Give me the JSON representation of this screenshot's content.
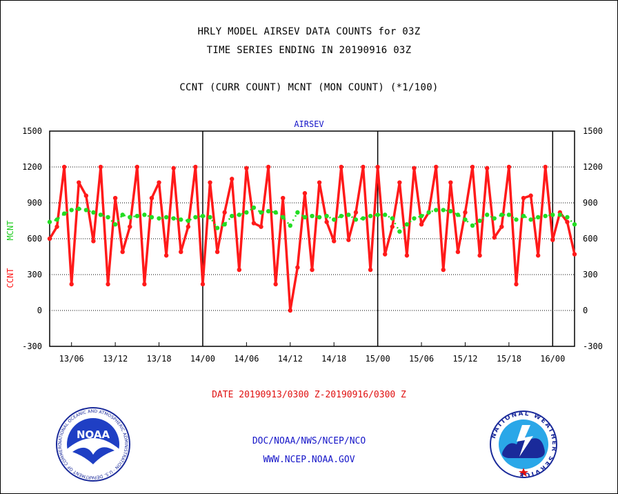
{
  "header": {
    "title_line1": "HRLY MODEL AIRSEV DATA COUNTS for 03Z",
    "title_line2": "TIME SERIES ENDING IN 20190916 03Z",
    "subtitle": "CCNT (CURR COUNT) MCNT (MON COUNT) (*1/100)"
  },
  "footer": {
    "date_range": "DATE 20190913/0300 Z-20190916/0300 Z",
    "org_path": "DOC/NOAA/NWS/NCEP/NCO",
    "website": "WWW.NCEP.NOAA.GOV"
  },
  "logos": {
    "left": {
      "text": "NOAA",
      "ring_text": "NATIONAL OCEANIC AND ATMOSPHERIC ADMINISTRATION · U.S. DEPARTMENT OF COMMERCE"
    },
    "right": {
      "ring_text": "NATIONAL WEATHER SERVICE"
    }
  },
  "colors": {
    "ccnt": "#ff1a1a",
    "mcnt": "#22dd22",
    "title_blue": "#1515c8",
    "date_red": "#e01010"
  },
  "chart_data": {
    "type": "line",
    "title": "AIRSEV",
    "ylabel_left": "CCNT",
    "ylabel_right": "MCNT",
    "ylim": [
      -300,
      1500
    ],
    "yticks": [
      -300,
      0,
      300,
      600,
      900,
      1200,
      1500
    ],
    "ytick_labels": [
      "-300",
      "0",
      "300",
      "600",
      "900",
      "1200",
      "1500"
    ],
    "xlim": [
      0,
      72
    ],
    "xticks": [
      3,
      9,
      15,
      21,
      27,
      33,
      39,
      45,
      51,
      57,
      63,
      69
    ],
    "xtick_labels": [
      "13/06",
      "13/12",
      "13/18",
      "14/00",
      "14/06",
      "14/12",
      "14/18",
      "15/00",
      "15/06",
      "15/12",
      "15/18",
      "16/00"
    ],
    "day_boundaries": [
      21,
      45,
      69
    ],
    "grid": true,
    "series": [
      {
        "name": "CCNT",
        "values": [
          600,
          700,
          1200,
          220,
          1070,
          960,
          580,
          1200,
          220,
          940,
          490,
          700,
          1200,
          220,
          940,
          1070,
          460,
          1190,
          490,
          700,
          1200,
          220,
          1070,
          490,
          820,
          1100,
          340,
          1190,
          730,
          700,
          1200,
          220,
          940,
          0,
          360,
          980,
          340,
          1070,
          740,
          580,
          1200,
          590,
          820,
          1200,
          340,
          1200,
          470,
          700,
          1070,
          460,
          1190,
          720,
          820,
          1200,
          340,
          1070,
          490,
          820,
          1200,
          460,
          1190,
          610,
          700,
          1200,
          220,
          940,
          960,
          460,
          1200,
          590,
          820,
          740,
          470
        ]
      },
      {
        "name": "MCNT",
        "values": [
          740,
          760,
          810,
          840,
          850,
          840,
          820,
          800,
          780,
          720,
          800,
          780,
          790,
          800,
          780,
          770,
          780,
          770,
          760,
          750,
          780,
          790,
          780,
          690,
          720,
          790,
          800,
          820,
          860,
          820,
          830,
          820,
          780,
          710,
          820,
          780,
          790,
          780,
          790,
          760,
          790,
          800,
          760,
          770,
          790,
          800,
          800,
          770,
          660,
          720,
          770,
          790,
          820,
          840,
          840,
          830,
          800,
          760,
          710,
          750,
          800,
          770,
          800,
          800,
          760,
          790,
          760,
          780,
          790,
          800,
          800,
          780,
          720
        ]
      }
    ]
  }
}
